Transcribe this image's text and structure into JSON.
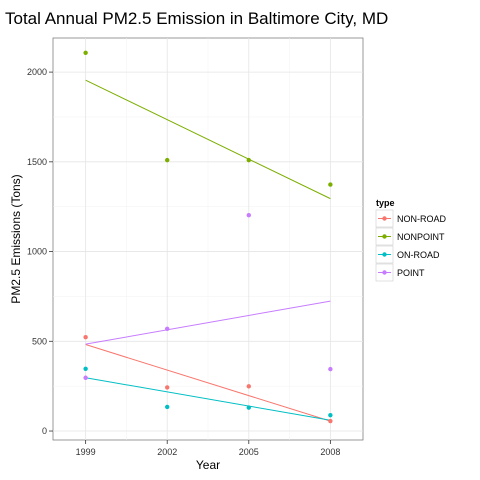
{
  "chart_data": {
    "type": "scatter",
    "title": "Total Annual PM2.5 Emission in Baltimore City, MD",
    "xlabel": "Year",
    "ylabel": "PM2.5 Emissions (Tons)",
    "x": [
      1999,
      2002,
      2005,
      2008
    ],
    "x_tick_labels": [
      "1999",
      "2002",
      "2005",
      "2008"
    ],
    "xlim": [
      1997.8,
      2009.2
    ],
    "ylim": [
      -50,
      2190
    ],
    "y_ticks": [
      0,
      500,
      1000,
      1500,
      2000
    ],
    "y_tick_labels": [
      "0",
      "500",
      "1000",
      "1500",
      "2000"
    ],
    "grid": true,
    "legend": {
      "title": "type",
      "position": "right"
    },
    "series": [
      {
        "name": "NON-ROAD",
        "color": "#F8766D",
        "values": [
          522.9,
          242.9,
          248.9,
          55.8
        ],
        "trend": [
          482.0,
          55.0
        ]
      },
      {
        "name": "NONPOINT",
        "color": "#7CAE00",
        "values": [
          2107.6,
          1509.5,
          1509.5,
          1373.2
        ],
        "trend": [
          1955.0,
          1295.0
        ]
      },
      {
        "name": "ON-ROAD",
        "color": "#00BFC4",
        "values": [
          346.8,
          134.3,
          130.4,
          88.3
        ],
        "trend": [
          297.0,
          60.0
        ]
      },
      {
        "name": "POINT",
        "color": "#C77CFF",
        "values": [
          296.8,
          569.3,
          1202.5,
          344.9
        ],
        "trend": [
          484.0,
          724.0
        ]
      }
    ]
  }
}
